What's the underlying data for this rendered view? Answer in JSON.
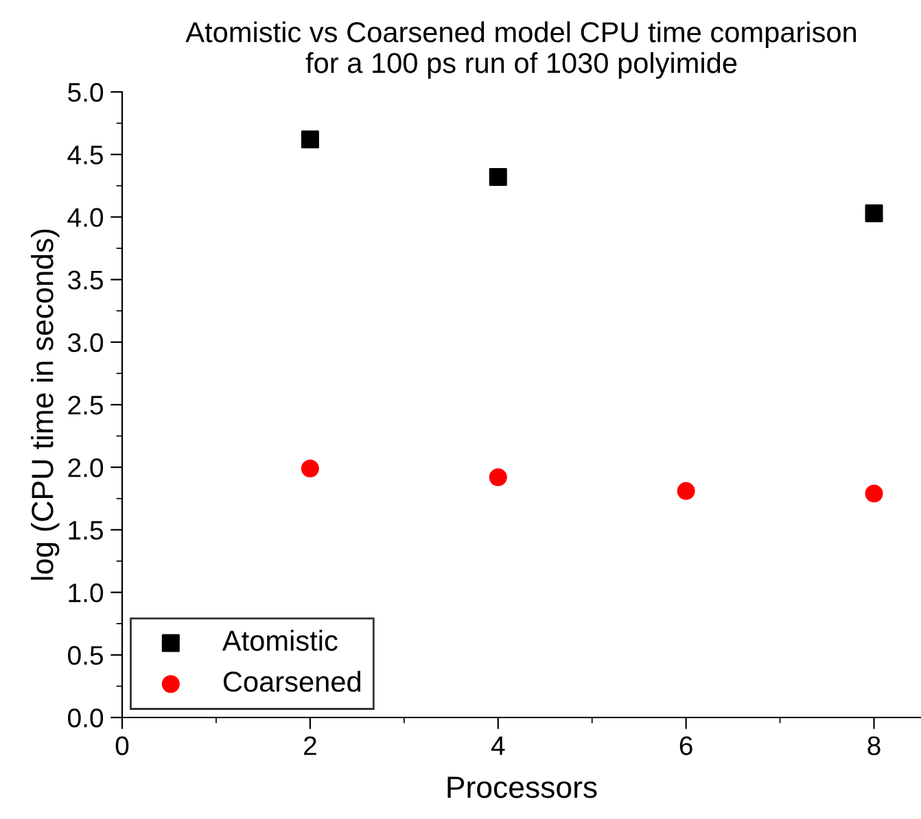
{
  "chart_data": {
    "type": "scatter",
    "title": "Atomistic vs Coarsened model CPU time comparison\nfor a 100 ps run of 1030 polyimide",
    "xlabel": "Processors",
    "ylabel": "log (CPU time in seconds)",
    "series": [
      {
        "name": "Atomistic",
        "color": "#000000",
        "marker": "square",
        "x": [
          2,
          4,
          8
        ],
        "values": [
          4.62,
          4.32,
          4.03
        ]
      },
      {
        "name": "Coarsened",
        "color": "#ff0000",
        "marker": "circle",
        "x": [
          2,
          4,
          6,
          8
        ],
        "values": [
          1.99,
          1.92,
          1.81,
          1.79
        ]
      }
    ],
    "xlim": [
      0,
      8.5
    ],
    "xticks": [
      0,
      2,
      4,
      6,
      8
    ],
    "ylim": [
      0,
      5
    ],
    "yticks": [
      {
        "value": 0,
        "label": "0.0"
      },
      {
        "value": 0.5,
        "label": "0.5"
      },
      {
        "value": 1,
        "label": "1.0"
      },
      {
        "value": 1.5,
        "label": "1.5"
      },
      {
        "value": 2,
        "label": "2.0"
      },
      {
        "value": 2.5,
        "label": "2.5"
      },
      {
        "value": 3,
        "label": "3.0"
      },
      {
        "value": 3.5,
        "label": "3.5"
      },
      {
        "value": 4,
        "label": "4.0"
      },
      {
        "value": 4.5,
        "label": "4.5"
      },
      {
        "value": 5,
        "label": "5.0"
      }
    ],
    "grid": false,
    "legend": "bottom left"
  }
}
